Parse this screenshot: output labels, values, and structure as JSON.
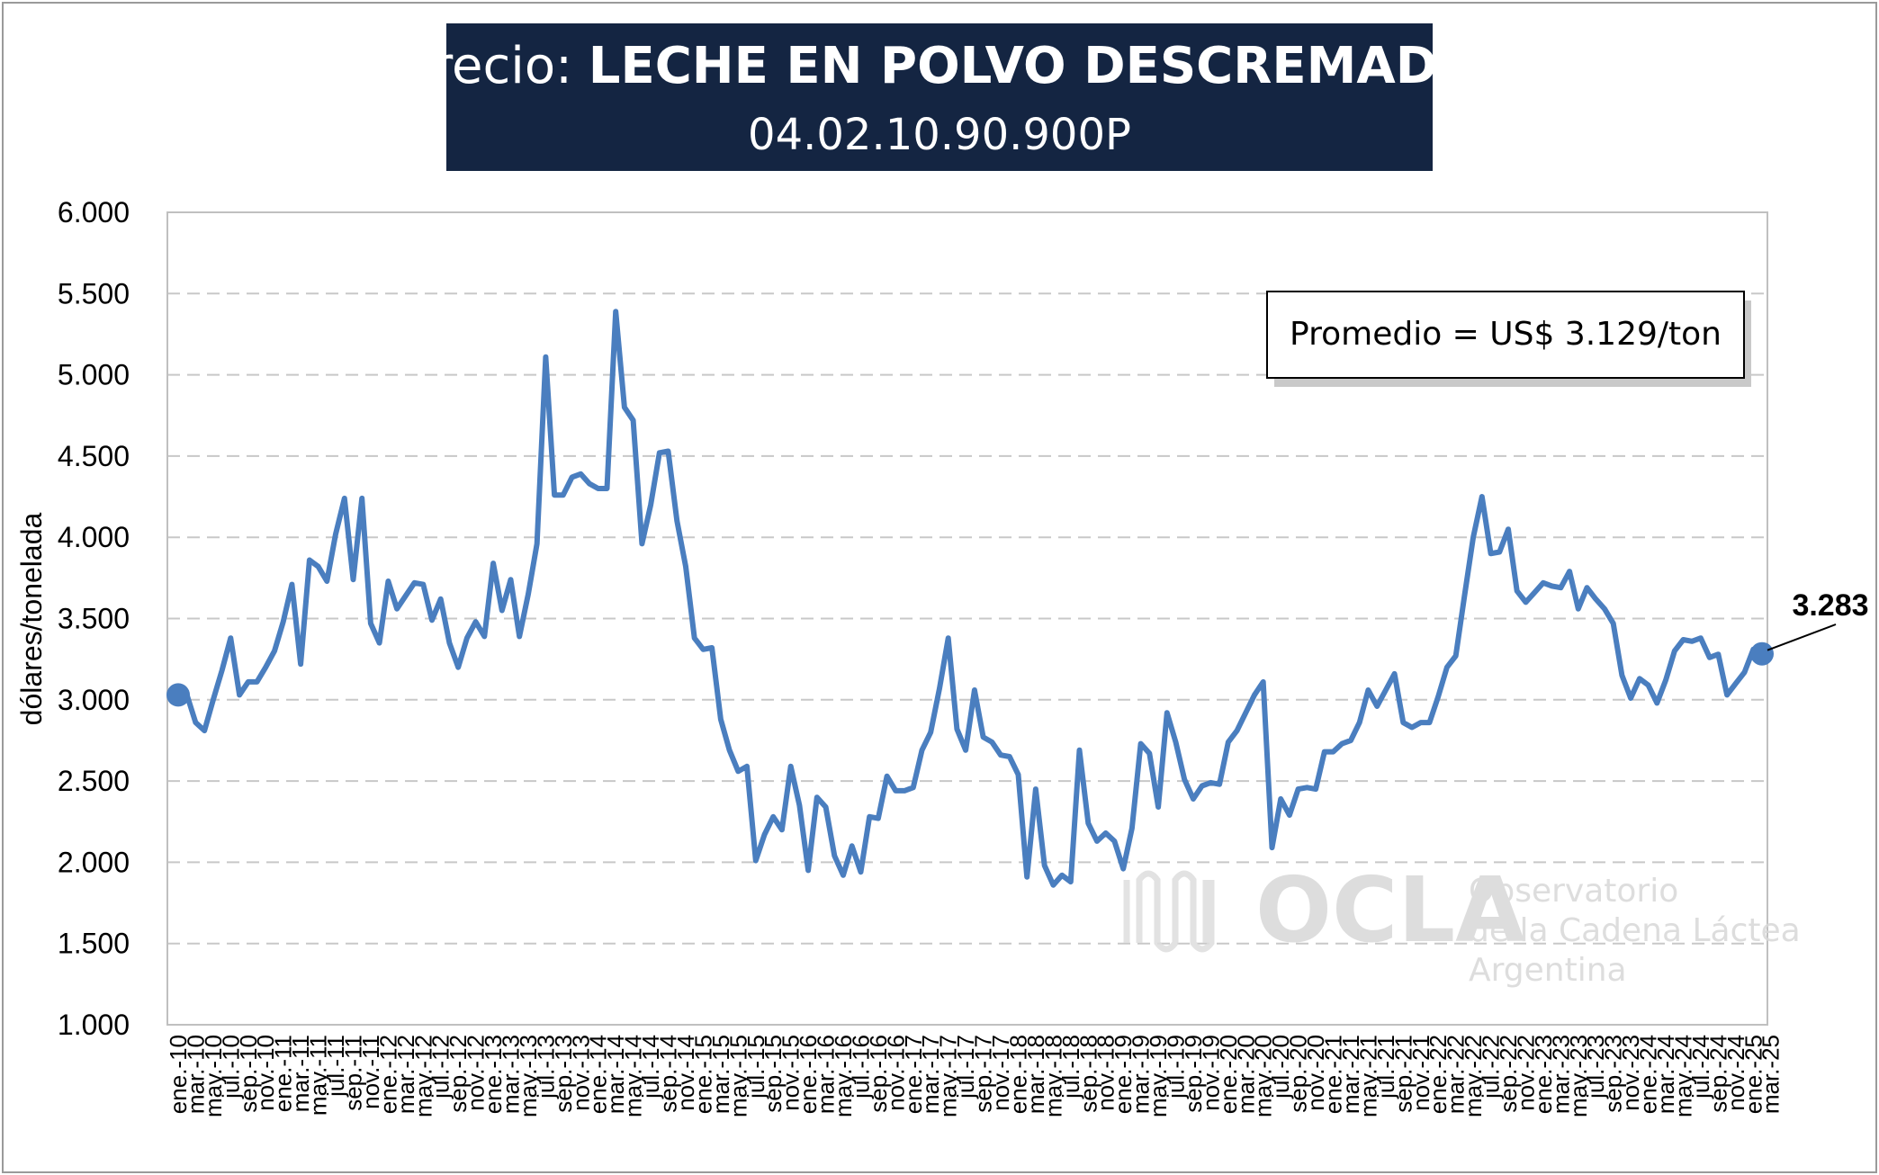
{
  "title": {
    "prefix": "Precio: ",
    "main": "LECHE EN POLVO DESCREMADA",
    "code": "04.02.10.90.900P"
  },
  "average_box": "Promedio = US$ 3.129/ton",
  "last_value_label": "3.283",
  "watermark": {
    "logo_text": "OCLA",
    "line1": "Observatorio",
    "line2": "de la Cadena Láctea",
    "line3": "Argentina"
  },
  "colors": {
    "series": "#4a7ebf",
    "title_background": "#142542"
  },
  "chart_data": {
    "type": "line",
    "title": "Precio: LECHE EN POLVO DESCREMADA",
    "subtitle": "04.02.10.90.900P",
    "xlabel": "",
    "ylabel": "dólares/tonelada",
    "ylim": [
      1000,
      6000
    ],
    "yticks": [
      1000,
      1500,
      2000,
      2500,
      3000,
      3500,
      4000,
      4500,
      5000,
      5500,
      6000
    ],
    "ytick_labels": [
      "1.000",
      "1.500",
      "2.000",
      "2.500",
      "3.000",
      "3.500",
      "4.000",
      "4.500",
      "5.000",
      "5.500",
      "6.000"
    ],
    "grid": true,
    "x_labels": [
      "ene.-10",
      "mar.-10",
      "may.-10",
      "jul.-10",
      "sep.-10",
      "nov.-10",
      "ene.-11",
      "mar.-11",
      "may.-11",
      "jul.-11",
      "sep.-11",
      "nov.-11",
      "ene.-12",
      "mar.-12",
      "may.-12",
      "jul.-12",
      "sep.-12",
      "nov.-12",
      "ene.-13",
      "mar.-13",
      "may.-13",
      "jul.-13",
      "sep.-13",
      "nov.-13",
      "ene.-14",
      "mar.-14",
      "may.-14",
      "jul.-14",
      "sep.-14",
      "nov.-14",
      "ene.-15",
      "mar.-15",
      "may.-15",
      "jul.-15",
      "sep.-15",
      "nov.-15",
      "ene.-16",
      "mar.-16",
      "may.-16",
      "jul.-16",
      "sep.-16",
      "nov.-16",
      "ene.-17",
      "mar.-17",
      "may.-17",
      "jul.-17",
      "sep.-17",
      "nov.-17",
      "ene.-18",
      "mar.-18",
      "may.-18",
      "jul.-18",
      "sep.-18",
      "nov.-18",
      "ene.-19",
      "mar.-19",
      "may.-19",
      "jul.-19",
      "sep.-19",
      "nov.-19",
      "ene.-20",
      "mar.-20",
      "may.-20",
      "jul.-20",
      "sep.-20",
      "nov.-20",
      "ene.-21",
      "mar.-21",
      "may.-21",
      "jul.-21",
      "sep.-21",
      "nov.-21",
      "ene.-22",
      "mar.-22",
      "may.-22",
      "jul.-22",
      "sep.-22",
      "nov.-22",
      "ene.-23",
      "mar.-23",
      "may.-23",
      "jul.-23",
      "sep.-23",
      "nov.-23",
      "ene.-24",
      "mar.-24",
      "may.-24",
      "jul.-24",
      "sep.-24",
      "nov.-24",
      "ene.-25",
      "mar.-25"
    ],
    "series": [
      {
        "name": "",
        "period_start": "ene.-10",
        "period_end": "mar.-25",
        "values": [
          3030,
          3030,
          2860,
          2810,
          3000,
          3180,
          3380,
          3030,
          3110,
          3110,
          3200,
          3300,
          3480,
          3710,
          3220,
          3860,
          3820,
          3730,
          4020,
          4240,
          3740,
          4240,
          3470,
          3350,
          3730,
          3560,
          3640,
          3720,
          3710,
          3490,
          3620,
          3350,
          3200,
          3380,
          3480,
          3390,
          3840,
          3550,
          3740,
          3390,
          3650,
          3960,
          5110,
          4260,
          4260,
          4370,
          4390,
          4330,
          4300,
          4300,
          5390,
          4800,
          4720,
          3960,
          4200,
          4520,
          4530,
          4100,
          3820,
          3380,
          3310,
          3320,
          2880,
          2690,
          2560,
          2590,
          2010,
          2170,
          2280,
          2200,
          2590,
          2350,
          1950,
          2400,
          2340,
          2040,
          1920,
          2100,
          1940,
          2280,
          2270,
          2530,
          2440,
          2440,
          2460,
          2690,
          2800,
          3070,
          3380,
          2820,
          2690,
          3060,
          2770,
          2740,
          2660,
          2650,
          2540,
          1910,
          2450,
          1980,
          1860,
          1920,
          1880,
          2690,
          2240,
          2130,
          2180,
          2130,
          1960,
          2210,
          2730,
          2670,
          2340,
          2920,
          2740,
          2510,
          2390,
          2470,
          2490,
          2480,
          2740,
          2810,
          2920,
          3030,
          3110,
          2090,
          2390,
          2290,
          2450,
          2460,
          2450,
          2680,
          2680,
          2730,
          2750,
          2860,
          3060,
          2960,
          3060,
          3160,
          2860,
          2830,
          2860,
          2860,
          3020,
          3200,
          3270,
          3640,
          4000,
          4250,
          3900,
          3910,
          4050,
          3670,
          3600,
          3660,
          3720,
          3700,
          3690,
          3790,
          3560,
          3690,
          3620,
          3560,
          3470,
          3150,
          3010,
          3130,
          3090,
          2980,
          3120,
          3300,
          3370,
          3360,
          3380,
          3260,
          3280,
          3030,
          3100,
          3170,
          3310,
          3283
        ]
      }
    ],
    "average": 3129,
    "annotations": [
      "Promedio = US$ 3.129/ton",
      "3.283"
    ],
    "legend": "none"
  }
}
